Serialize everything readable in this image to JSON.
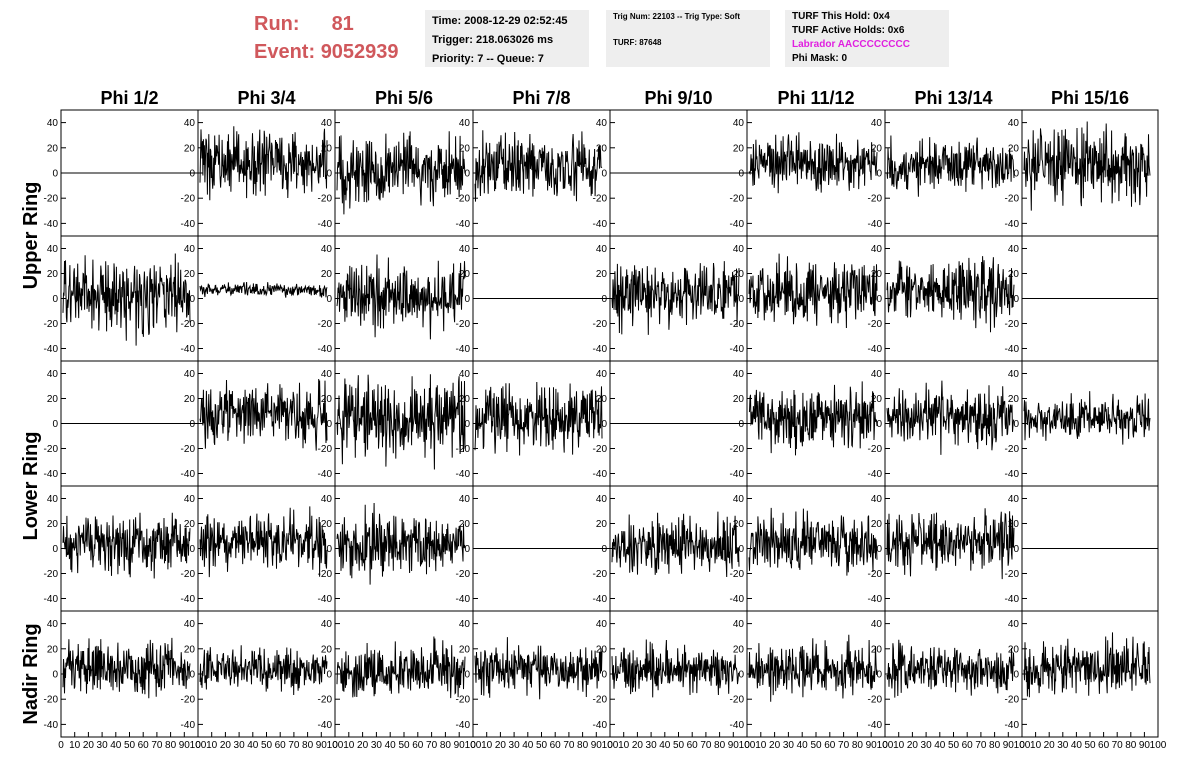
{
  "header": {
    "run_label": "Run:",
    "run_value": "81",
    "event_label": "Event:",
    "event_value": "9052939"
  },
  "time_box": {
    "time": "Time: 2008-12-29 02:52:45",
    "trigger": "Trigger: 218.063026 ms",
    "priority": "Priority: 7 -- Queue: 7"
  },
  "trig_box": {
    "trig": "Trig Num: 22103 -- Trig Type: Soft",
    "turf": "TURF: 87648"
  },
  "turf_box": {
    "this_hold": "TURF This Hold: 0x4",
    "active_holds": "TURF Active Holds: 0x6",
    "labrador": "Labrador AACCCCCCCC",
    "phi_mask": "Phi Mask: 0"
  },
  "colors": {
    "title_red": "#d0585c",
    "labrador_magenta": "#e020e0",
    "trace": "#000000",
    "box_bg": "#eeeeee"
  },
  "chart_data": {
    "type": "line",
    "columns": [
      "Phi 1/2",
      "Phi 3/4",
      "Phi 5/6",
      "Phi 7/8",
      "Phi 9/10",
      "Phi 11/12",
      "Phi 13/14",
      "Phi 15/16"
    ],
    "rings": [
      "Upper Ring",
      "Lower Ring",
      "Nadir Ring"
    ],
    "xlim": [
      0,
      100
    ],
    "ylim": [
      -50,
      50
    ],
    "y_ticks": [
      -40,
      -20,
      0,
      20,
      40
    ],
    "x_ticks": [
      0,
      10,
      20,
      30,
      40,
      50,
      60,
      70,
      80,
      90,
      100
    ],
    "x_tick_labels": [
      "0",
      "10",
      "20",
      "30",
      "40",
      "50",
      "60",
      "70",
      "80",
      "90",
      "100"
    ],
    "channel_rows": 4,
    "note_traces": "Each panel shows a noise waveform of ~260 samples over x 0-100; flat panels are at y = 0.",
    "panels": [
      {
        "row": 0,
        "col": 0,
        "flat": true,
        "amp": 0,
        "offset": 0
      },
      {
        "row": 0,
        "col": 1,
        "flat": false,
        "amp": 12,
        "offset": 8
      },
      {
        "row": 0,
        "col": 2,
        "flat": false,
        "amp": 14,
        "offset": 2
      },
      {
        "row": 0,
        "col": 3,
        "flat": false,
        "amp": 12,
        "offset": 3
      },
      {
        "row": 0,
        "col": 4,
        "flat": true,
        "amp": 0,
        "offset": 0
      },
      {
        "row": 0,
        "col": 5,
        "flat": false,
        "amp": 11,
        "offset": 8
      },
      {
        "row": 0,
        "col": 6,
        "flat": false,
        "amp": 10,
        "offset": 5
      },
      {
        "row": 0,
        "col": 7,
        "flat": false,
        "amp": 14,
        "offset": 6
      },
      {
        "row": 1,
        "col": 0,
        "flat": false,
        "amp": 14,
        "offset": 2
      },
      {
        "row": 1,
        "col": 1,
        "flat": false,
        "amp": 2.5,
        "offset": 7
      },
      {
        "row": 1,
        "col": 2,
        "flat": false,
        "amp": 13,
        "offset": 2
      },
      {
        "row": 1,
        "col": 3,
        "flat": true,
        "amp": 0,
        "offset": 0
      },
      {
        "row": 1,
        "col": 4,
        "flat": false,
        "amp": 12,
        "offset": 3
      },
      {
        "row": 1,
        "col": 5,
        "flat": false,
        "amp": 12,
        "offset": 5
      },
      {
        "row": 1,
        "col": 6,
        "flat": false,
        "amp": 12,
        "offset": 6
      },
      {
        "row": 1,
        "col": 7,
        "flat": true,
        "amp": 0,
        "offset": 0
      },
      {
        "row": 2,
        "col": 0,
        "flat": true,
        "amp": 0,
        "offset": 0
      },
      {
        "row": 2,
        "col": 1,
        "flat": false,
        "amp": 11,
        "offset": 7
      },
      {
        "row": 2,
        "col": 2,
        "flat": false,
        "amp": 15,
        "offset": 3
      },
      {
        "row": 2,
        "col": 3,
        "flat": false,
        "amp": 13,
        "offset": 4
      },
      {
        "row": 2,
        "col": 4,
        "flat": true,
        "amp": 0,
        "offset": 0
      },
      {
        "row": 2,
        "col": 5,
        "flat": false,
        "amp": 12,
        "offset": 5
      },
      {
        "row": 2,
        "col": 6,
        "flat": false,
        "amp": 11,
        "offset": 6
      },
      {
        "row": 2,
        "col": 7,
        "flat": false,
        "amp": 8,
        "offset": 4
      },
      {
        "row": 3,
        "col": 0,
        "flat": false,
        "amp": 11,
        "offset": 4
      },
      {
        "row": 3,
        "col": 1,
        "flat": false,
        "amp": 11,
        "offset": 5
      },
      {
        "row": 3,
        "col": 2,
        "flat": false,
        "amp": 12,
        "offset": 3
      },
      {
        "row": 3,
        "col": 3,
        "flat": true,
        "amp": 0,
        "offset": 0
      },
      {
        "row": 3,
        "col": 4,
        "flat": false,
        "amp": 11,
        "offset": 3
      },
      {
        "row": 3,
        "col": 5,
        "flat": false,
        "amp": 11,
        "offset": 5
      },
      {
        "row": 3,
        "col": 6,
        "flat": false,
        "amp": 11,
        "offset": 5
      },
      {
        "row": 3,
        "col": 7,
        "flat": true,
        "amp": 0,
        "offset": 0
      },
      {
        "row": 4,
        "col": 0,
        "flat": false,
        "amp": 10,
        "offset": 4
      },
      {
        "row": 4,
        "col": 1,
        "flat": false,
        "amp": 8,
        "offset": 4
      },
      {
        "row": 4,
        "col": 2,
        "flat": false,
        "amp": 10,
        "offset": 3
      },
      {
        "row": 4,
        "col": 3,
        "flat": false,
        "amp": 10,
        "offset": 4
      },
      {
        "row": 4,
        "col": 4,
        "flat": false,
        "amp": 9,
        "offset": 3
      },
      {
        "row": 4,
        "col": 5,
        "flat": false,
        "amp": 10,
        "offset": 3
      },
      {
        "row": 4,
        "col": 6,
        "flat": false,
        "amp": 9,
        "offset": 3
      },
      {
        "row": 4,
        "col": 7,
        "flat": false,
        "amp": 10,
        "offset": 6
      }
    ]
  }
}
